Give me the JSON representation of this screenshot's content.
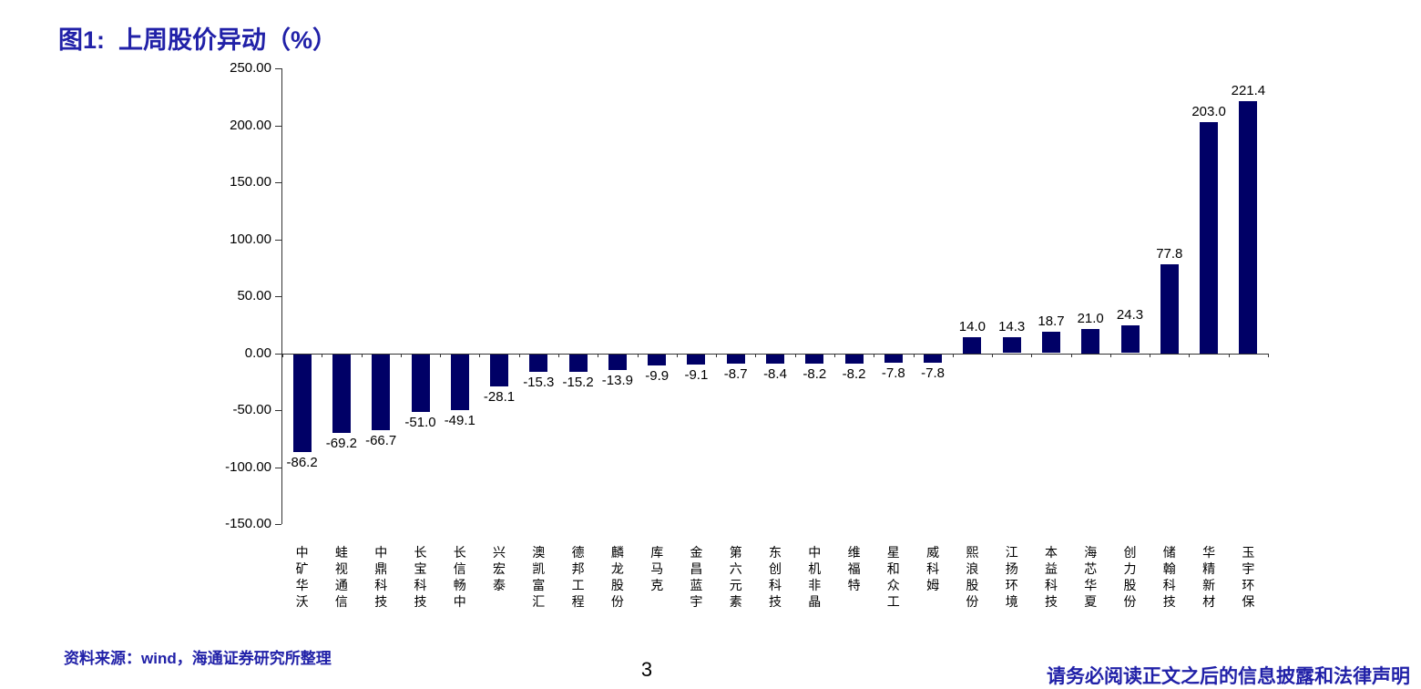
{
  "header": {
    "title": "图1:  上周股价异动（%）"
  },
  "chart_data": {
    "type": "bar",
    "title": "上周股价异动（%）",
    "categories": [
      "中矿华沃",
      "蛙视通信",
      "中鼎科技",
      "长宝科技",
      "长信畅中",
      "兴宏泰",
      "澳凯富汇",
      "德邦工程",
      "麟龙股份",
      "库马克",
      "金昌蓝宇",
      "第六元素",
      "东创科技",
      "中机非晶",
      "维福特",
      "星和众工",
      "威科姆",
      "熙浪股份",
      "江扬环境",
      "本益科技",
      "海芯华夏",
      "创力股份",
      "储翰科技",
      "华精新材",
      "玉宇环保"
    ],
    "values": [
      -86.2,
      -69.2,
      -66.7,
      -51.0,
      -49.1,
      -28.1,
      -15.3,
      -15.2,
      -13.9,
      -9.9,
      -9.1,
      -8.7,
      -8.4,
      -8.2,
      -8.2,
      -7.8,
      -7.8,
      14.0,
      14.3,
      18.7,
      21.0,
      24.3,
      77.8,
      203.0,
      221.4
    ],
    "yticks": [
      250,
      200,
      150,
      100,
      50,
      0,
      -50,
      -100,
      -150
    ],
    "ylim": [
      -150,
      250
    ],
    "xlabel": "",
    "ylabel": "",
    "grid": false,
    "legend": "none",
    "bar_color": "#000066",
    "axis_color": "#333333",
    "label_color": "#000000"
  },
  "footer": {
    "source": "资料来源：wind，海通证券研究所整理",
    "page_number": "3",
    "disclaimer": "请务必阅读正文之后的信息披露和法律声明"
  },
  "colors": {
    "accent_blue": "#2121a8",
    "bar_navy": "#000066"
  }
}
